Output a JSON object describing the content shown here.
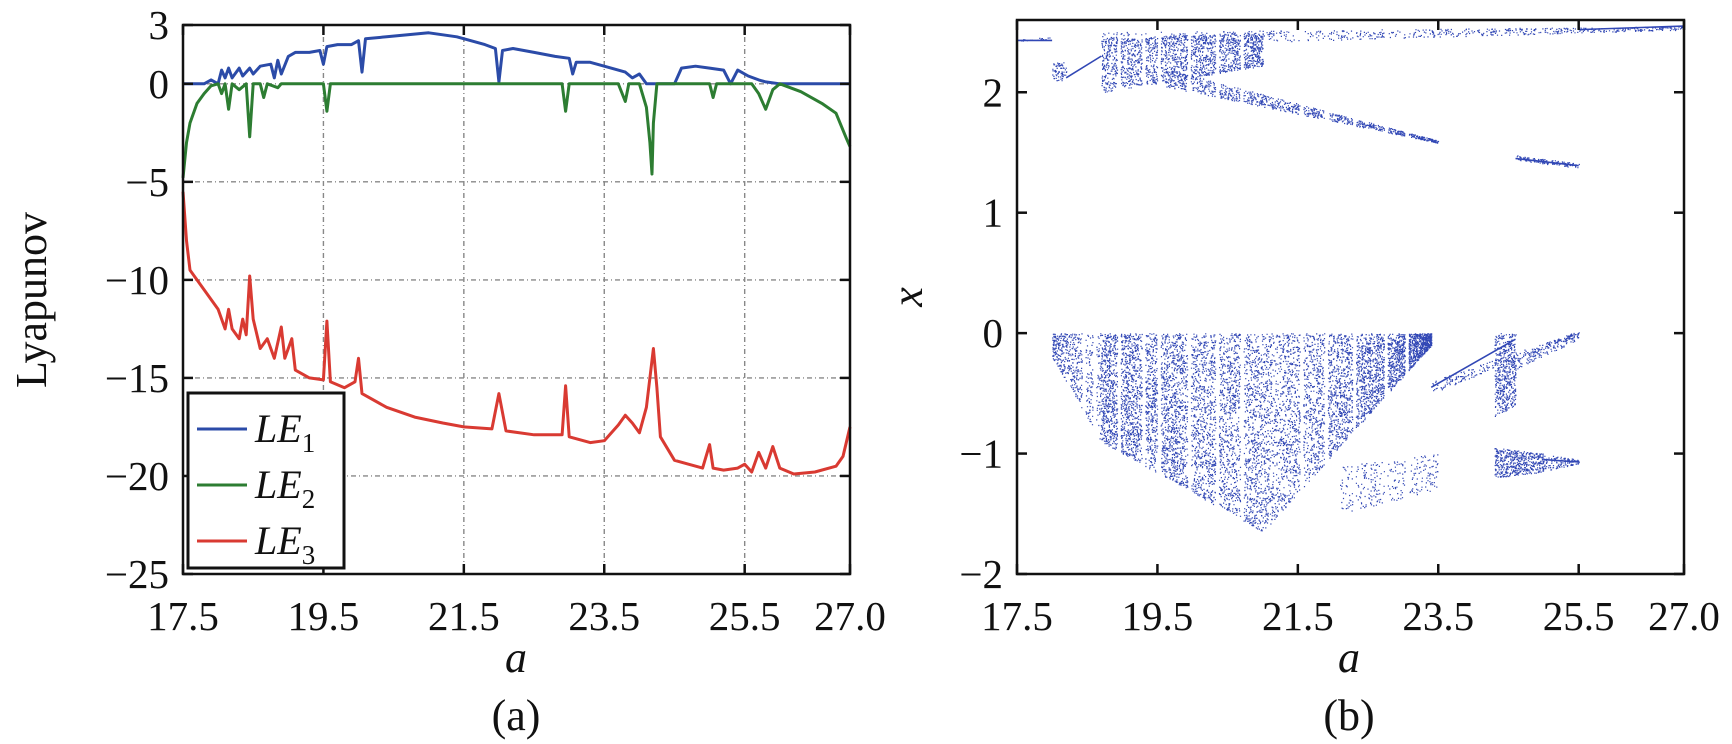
{
  "figure": {
    "captions": [
      "(a)",
      "(b)"
    ]
  },
  "chart_data": [
    {
      "type": "line",
      "xlabel": "a",
      "ylabel": "Lyapunov",
      "xlim": [
        17.5,
        27.0
      ],
      "ylim": [
        -25,
        3
      ],
      "x_ticks": [
        "17.5",
        "19.5",
        "21.5",
        "23.5",
        "25.5",
        "27.0"
      ],
      "x_tick_values": [
        17.5,
        19.5,
        21.5,
        23.5,
        25.5,
        27.0
      ],
      "y_ticks": [
        "3",
        "0",
        "−5",
        "−10",
        "−15",
        "−20",
        "−25"
      ],
      "y_tick_values": [
        3,
        0,
        -5,
        -10,
        -15,
        -20,
        -25
      ],
      "grid": true,
      "legend_position": "bottom-left",
      "series": [
        {
          "name": "LE1",
          "legend_main": "LE",
          "legend_sub": "1",
          "color": "#2b4ba8",
          "points": [
            [
              17.5,
              0.0
            ],
            [
              17.6,
              0.0
            ],
            [
              17.8,
              0.0
            ],
            [
              17.9,
              0.2
            ],
            [
              18.0,
              0.0
            ],
            [
              18.05,
              0.7
            ],
            [
              18.1,
              0.3
            ],
            [
              18.15,
              0.8
            ],
            [
              18.2,
              0.3
            ],
            [
              18.3,
              0.8
            ],
            [
              18.35,
              0.4
            ],
            [
              18.45,
              0.8
            ],
            [
              18.5,
              0.5
            ],
            [
              18.6,
              0.9
            ],
            [
              18.75,
              1.0
            ],
            [
              18.8,
              0.3
            ],
            [
              18.85,
              1.2
            ],
            [
              18.9,
              0.5
            ],
            [
              19.0,
              1.4
            ],
            [
              19.1,
              1.6
            ],
            [
              19.3,
              1.6
            ],
            [
              19.45,
              1.7
            ],
            [
              19.5,
              1.0
            ],
            [
              19.55,
              1.9
            ],
            [
              19.7,
              2.0
            ],
            [
              19.9,
              2.0
            ],
            [
              20.0,
              2.2
            ],
            [
              20.05,
              0.6
            ],
            [
              20.1,
              2.3
            ],
            [
              20.4,
              2.4
            ],
            [
              20.7,
              2.5
            ],
            [
              21.0,
              2.6
            ],
            [
              21.2,
              2.5
            ],
            [
              21.4,
              2.4
            ],
            [
              21.6,
              2.2
            ],
            [
              21.8,
              2.0
            ],
            [
              21.95,
              1.8
            ],
            [
              22.0,
              0.1
            ],
            [
              22.05,
              1.7
            ],
            [
              22.2,
              1.8
            ],
            [
              22.5,
              1.6
            ],
            [
              22.8,
              1.4
            ],
            [
              23.0,
              1.3
            ],
            [
              23.05,
              0.5
            ],
            [
              23.1,
              1.1
            ],
            [
              23.3,
              1.1
            ],
            [
              23.5,
              0.9
            ],
            [
              23.8,
              0.6
            ],
            [
              23.9,
              0.3
            ],
            [
              24.0,
              0.5
            ],
            [
              24.1,
              0.0
            ],
            [
              24.3,
              0.0
            ],
            [
              24.5,
              0.0
            ],
            [
              24.6,
              0.8
            ],
            [
              24.8,
              0.9
            ],
            [
              25.0,
              0.8
            ],
            [
              25.2,
              0.7
            ],
            [
              25.3,
              0.0
            ],
            [
              25.4,
              0.7
            ],
            [
              25.55,
              0.4
            ],
            [
              25.7,
              0.2
            ],
            [
              25.8,
              0.1
            ],
            [
              26.0,
              0.0
            ],
            [
              26.5,
              0.0
            ],
            [
              27.0,
              0.0
            ]
          ]
        },
        {
          "name": "LE2",
          "legend_main": "LE",
          "legend_sub": "2",
          "color": "#2d7d32",
          "points": [
            [
              17.5,
              -4.8
            ],
            [
              17.55,
              -3.0
            ],
            [
              17.6,
              -2.0
            ],
            [
              17.7,
              -1.0
            ],
            [
              17.8,
              -0.5
            ],
            [
              17.9,
              -0.1
            ],
            [
              18.0,
              0.0
            ],
            [
              18.05,
              -0.5
            ],
            [
              18.1,
              0.0
            ],
            [
              18.15,
              -1.3
            ],
            [
              18.2,
              0.0
            ],
            [
              18.3,
              -0.3
            ],
            [
              18.4,
              0.0
            ],
            [
              18.45,
              -2.7
            ],
            [
              18.5,
              0.0
            ],
            [
              18.6,
              0.0
            ],
            [
              18.65,
              -0.7
            ],
            [
              18.7,
              0.0
            ],
            [
              18.85,
              -0.2
            ],
            [
              18.9,
              0.0
            ],
            [
              19.5,
              0.0
            ],
            [
              19.55,
              -1.4
            ],
            [
              19.6,
              0.0
            ],
            [
              22.9,
              0.0
            ],
            [
              22.95,
              -1.4
            ],
            [
              23.0,
              0.0
            ],
            [
              23.7,
              0.0
            ],
            [
              23.8,
              -0.9
            ],
            [
              23.85,
              0.0
            ],
            [
              24.0,
              0.0
            ],
            [
              24.1,
              -1.2
            ],
            [
              24.15,
              -3.0
            ],
            [
              24.18,
              -4.6
            ],
            [
              24.2,
              -2.0
            ],
            [
              24.25,
              0.0
            ],
            [
              24.7,
              0.0
            ],
            [
              25.0,
              0.0
            ],
            [
              25.05,
              -0.7
            ],
            [
              25.1,
              0.0
            ],
            [
              25.6,
              0.0
            ],
            [
              25.7,
              -0.5
            ],
            [
              25.8,
              -1.3
            ],
            [
              25.9,
              -0.3
            ],
            [
              26.0,
              0.0
            ],
            [
              26.3,
              -0.4
            ],
            [
              26.6,
              -1.0
            ],
            [
              26.8,
              -1.5
            ],
            [
              26.95,
              -2.8
            ],
            [
              27.0,
              -3.2
            ]
          ]
        },
        {
          "name": "LE3",
          "legend_main": "LE",
          "legend_sub": "3",
          "color": "#d93a32",
          "points": [
            [
              17.5,
              -5.5
            ],
            [
              17.55,
              -8.0
            ],
            [
              17.6,
              -9.5
            ],
            [
              17.8,
              -10.5
            ],
            [
              18.0,
              -11.5
            ],
            [
              18.1,
              -12.5
            ],
            [
              18.15,
              -11.5
            ],
            [
              18.2,
              -12.5
            ],
            [
              18.3,
              -13.0
            ],
            [
              18.35,
              -12.0
            ],
            [
              18.4,
              -12.8
            ],
            [
              18.45,
              -9.8
            ],
            [
              18.5,
              -12.0
            ],
            [
              18.6,
              -13.5
            ],
            [
              18.7,
              -13.0
            ],
            [
              18.8,
              -14.0
            ],
            [
              18.9,
              -12.4
            ],
            [
              18.95,
              -14.0
            ],
            [
              19.05,
              -13.0
            ],
            [
              19.1,
              -14.6
            ],
            [
              19.3,
              -15.0
            ],
            [
              19.5,
              -15.1
            ],
            [
              19.55,
              -12.1
            ],
            [
              19.6,
              -15.2
            ],
            [
              19.8,
              -15.5
            ],
            [
              19.95,
              -15.2
            ],
            [
              20.0,
              -14.0
            ],
            [
              20.05,
              -15.8
            ],
            [
              20.4,
              -16.5
            ],
            [
              20.8,
              -17.0
            ],
            [
              21.2,
              -17.3
            ],
            [
              21.5,
              -17.5
            ],
            [
              21.9,
              -17.6
            ],
            [
              22.0,
              -15.8
            ],
            [
              22.1,
              -17.7
            ],
            [
              22.5,
              -17.9
            ],
            [
              22.8,
              -17.9
            ],
            [
              22.9,
              -17.9
            ],
            [
              22.95,
              -15.4
            ],
            [
              23.0,
              -18.0
            ],
            [
              23.3,
              -18.3
            ],
            [
              23.5,
              -18.2
            ],
            [
              23.7,
              -17.4
            ],
            [
              23.8,
              -16.9
            ],
            [
              23.9,
              -17.3
            ],
            [
              24.0,
              -17.8
            ],
            [
              24.1,
              -16.5
            ],
            [
              24.15,
              -15.0
            ],
            [
              24.2,
              -13.5
            ],
            [
              24.25,
              -15.5
            ],
            [
              24.3,
              -18.0
            ],
            [
              24.5,
              -19.2
            ],
            [
              24.7,
              -19.4
            ],
            [
              24.9,
              -19.6
            ],
            [
              25.0,
              -18.4
            ],
            [
              25.05,
              -19.6
            ],
            [
              25.2,
              -19.7
            ],
            [
              25.4,
              -19.6
            ],
            [
              25.5,
              -19.4
            ],
            [
              25.6,
              -19.8
            ],
            [
              25.7,
              -18.8
            ],
            [
              25.8,
              -19.6
            ],
            [
              25.9,
              -18.5
            ],
            [
              26.0,
              -19.6
            ],
            [
              26.2,
              -19.9
            ],
            [
              26.5,
              -19.8
            ],
            [
              26.8,
              -19.5
            ],
            [
              26.9,
              -19.0
            ],
            [
              27.0,
              -17.5
            ]
          ]
        }
      ]
    },
    {
      "type": "scatter",
      "xlabel": "x_axis_a",
      "xlabel_text": "a",
      "ylabel": "x",
      "xlim": [
        17.5,
        27.0
      ],
      "ylim": [
        -2,
        2.6
      ],
      "x_ticks": [
        "17.5",
        "19.5",
        "21.5",
        "23.5",
        "25.5",
        "27.0"
      ],
      "x_tick_values": [
        17.5,
        19.5,
        21.5,
        23.5,
        25.5,
        27.0
      ],
      "y_ticks": [
        "2",
        "1",
        "0",
        "−1",
        "−2"
      ],
      "y_tick_values": [
        2,
        1,
        0,
        -1,
        -2
      ],
      "grid": false,
      "color": "#3147b5",
      "bands": [
        {
          "x": [
            17.5,
            18.0
          ],
          "ylo_start": 2.42,
          "ylo_end": 2.44,
          "yhi_start": 2.44,
          "yhi_end": 2.46,
          "density": 18
        },
        {
          "x": [
            18.0,
            18.2
          ],
          "ylo_start": 2.1,
          "ylo_end": 2.1,
          "yhi_start": 2.25,
          "yhi_end": 2.25,
          "density": 70
        },
        {
          "x": [
            18.7,
            27.0
          ],
          "ylo_start": 2.38,
          "ylo_end": 2.52,
          "yhi_start": 2.5,
          "yhi_end": 2.55,
          "density": 700
        },
        {
          "x": [
            18.7,
            21.0
          ],
          "ylo_start": 2.0,
          "ylo_end": 2.22,
          "yhi_start": 2.45,
          "yhi_end": 2.5,
          "density": 2000
        },
        {
          "x": [
            19.6,
            23.5
          ],
          "ylo_start": 2.05,
          "ylo_end": 1.58,
          "yhi_start": 2.2,
          "yhi_end": 1.6,
          "density": 1000
        },
        {
          "x": [
            24.6,
            25.5
          ],
          "ylo_start": 1.44,
          "ylo_end": 1.37,
          "yhi_start": 1.48,
          "yhi_end": 1.41,
          "density": 130
        },
        {
          "x": [
            18.0,
            18.7
          ],
          "ylo_start": -0.2,
          "ylo_end": -0.9,
          "yhi_start": 0.0,
          "yhi_end": 0.0,
          "density": 600
        },
        {
          "x": [
            18.7,
            21.0
          ],
          "ylo_start": -0.9,
          "ylo_end": -1.65,
          "yhi_start": 0.0,
          "yhi_end": 0.0,
          "density": 5200
        },
        {
          "x": [
            21.0,
            23.4
          ],
          "ylo_start": -1.65,
          "ylo_end": -0.1,
          "yhi_start": 0.0,
          "yhi_end": 0.0,
          "density": 4300
        },
        {
          "x": [
            23.4,
            25.5
          ],
          "ylo_start": -0.5,
          "ylo_end": -0.02,
          "yhi_start": -0.4,
          "yhi_end": 0.02,
          "density": 220
        },
        {
          "x": [
            22.1,
            23.5
          ],
          "ylo_start": -1.5,
          "ylo_end": -1.3,
          "yhi_start": -1.1,
          "yhi_end": -1.0,
          "density": 320
        },
        {
          "x": [
            24.3,
            24.6
          ],
          "ylo_start": -0.7,
          "ylo_end": -0.6,
          "yhi_start": 0.0,
          "yhi_end": 0.0,
          "density": 500
        },
        {
          "x": [
            24.6,
            25.5
          ],
          "ylo_start": -0.3,
          "ylo_end": -0.05,
          "yhi_start": -0.2,
          "yhi_end": 0.02,
          "density": 120
        },
        {
          "x": [
            24.3,
            25.0
          ],
          "ylo_start": -1.2,
          "ylo_end": -1.15,
          "yhi_start": -0.95,
          "yhi_end": -1.0,
          "density": 500
        },
        {
          "x": [
            25.0,
            25.5
          ],
          "ylo_start": -1.15,
          "ylo_end": -1.08,
          "yhi_start": -1.0,
          "yhi_end": -1.05,
          "density": 120
        }
      ],
      "lines": [
        {
          "x": [
            17.5,
            18.0
          ],
          "y": [
            2.43,
            2.43
          ]
        },
        {
          "x": [
            18.2,
            18.7
          ],
          "y": [
            2.12,
            2.3
          ]
        },
        {
          "x": [
            24.6,
            25.5
          ],
          "y": [
            1.45,
            1.39
          ]
        },
        {
          "x": [
            23.4,
            24.6
          ],
          "y": [
            -0.45,
            -0.05
          ]
        },
        {
          "x": [
            25.0,
            25.5
          ],
          "y": [
            -1.05,
            -1.07
          ]
        },
        {
          "x": [
            25.5,
            27.0
          ],
          "y": [
            2.52,
            2.55
          ]
        }
      ],
      "gaps": [
        18.45,
        18.6,
        18.95,
        19.3,
        19.52,
        19.95,
        20.35,
        20.7,
        21.55,
        21.9,
        22.3,
        22.75,
        23.05
      ]
    }
  ]
}
